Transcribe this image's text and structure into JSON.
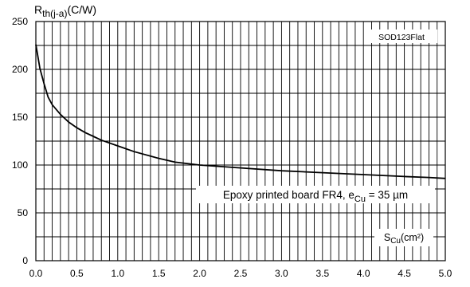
{
  "chart_data": {
    "type": "line",
    "y_label": {
      "main": "R",
      "sub": "th(j-a)",
      "unit": "(C/W)"
    },
    "x_label": {
      "main": "S",
      "sub": "Cu",
      "unit": "(cm²)"
    },
    "package_label": "SOD123Flat",
    "condition_label": {
      "text": "Epoxy printed board FR4, e",
      "sub": "Cu",
      "value": " = 35 µm"
    },
    "xlim": [
      0,
      5
    ],
    "ylim": [
      0,
      250
    ],
    "x_ticks": [
      0.0,
      0.5,
      1.0,
      1.5,
      2.0,
      2.5,
      3.0,
      3.5,
      4.0,
      4.5,
      5.0
    ],
    "x_tick_labels": [
      "0.0",
      "0.5",
      "1.0",
      "1.5",
      "2.0",
      "2.5",
      "3.0",
      "3.5",
      "4.0",
      "4.5",
      "5.0"
    ],
    "y_ticks": [
      0,
      50,
      100,
      150,
      200,
      250
    ],
    "y_tick_labels": [
      "0",
      "50",
      "100",
      "150",
      "200",
      "250"
    ],
    "grid": true,
    "series": [
      {
        "x": [
          0.0,
          0.05,
          0.1,
          0.15,
          0.2,
          0.3,
          0.4,
          0.5,
          0.6,
          0.7,
          0.8,
          1.0,
          1.2,
          1.5,
          1.7,
          2.0,
          2.5,
          3.0,
          3.5,
          4.0,
          4.5,
          4.8,
          5.0
        ],
        "y": [
          226,
          201,
          185,
          171,
          163,
          153,
          145,
          139,
          134,
          130,
          126,
          120,
          114,
          107,
          103,
          100,
          97,
          94,
          92,
          90,
          88,
          87,
          86
        ]
      }
    ]
  }
}
